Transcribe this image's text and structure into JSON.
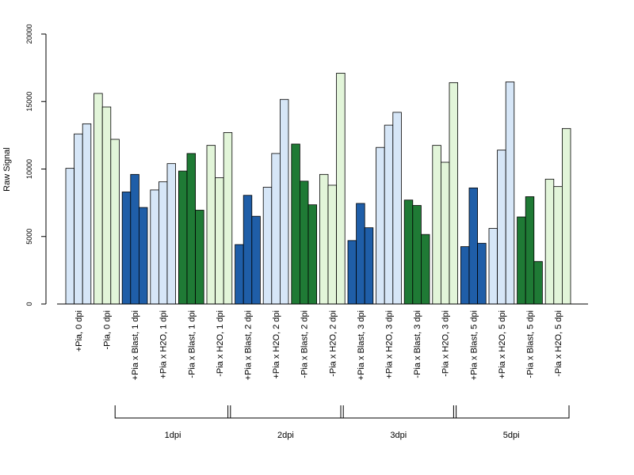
{
  "chart_data": {
    "type": "bar",
    "ylabel": "Raw Signal",
    "ylim": [
      0,
      20000
    ],
    "yticks": [
      0,
      5000,
      10000,
      15000,
      20000
    ],
    "grid": false,
    "colors": {
      "light_blue": "#d6e6f7",
      "light_green": "#e2f5d9",
      "dark_blue": "#1f5ea8",
      "dark_green": "#1f7a35"
    },
    "categories": [
      "+Pia, 0 dpi",
      "-Pia, 0 dpi",
      "+Pia x Blast, 1 dpi",
      "+Pia x H2O, 1 dpi",
      "-Pia x Blast, 1 dpi",
      "-Pia x H2O, 1 dpi",
      "+Pia x Blast, 2 dpi",
      "+Pia x H2O, 2 dpi",
      "-Pia x Blast, 2 dpi",
      "-Pia x H2O, 2 dpi",
      "+Pia x Blast, 3 dpi",
      "+Pia x H2O, 3 dpi",
      "-Pia x Blast, 3 dpi",
      "-Pia x H2O, 3 dpi",
      "+Pia x Blast, 5 dpi",
      "+Pia x H2O, 5 dpi",
      "-Pia x Blast, 5 dpi",
      "-Pia x H2O, 5 dpi"
    ],
    "group_colors": [
      "light_blue",
      "light_green",
      "dark_blue",
      "light_blue",
      "dark_green",
      "light_green",
      "dark_blue",
      "light_blue",
      "dark_green",
      "light_green",
      "dark_blue",
      "light_blue",
      "dark_green",
      "light_green",
      "dark_blue",
      "light_blue",
      "dark_green",
      "light_green"
    ],
    "values": [
      [
        10050,
        12600,
        13350
      ],
      [
        15600,
        14600,
        12200
      ],
      [
        8300,
        9600,
        7150
      ],
      [
        8450,
        9050,
        10400
      ],
      [
        9850,
        11150,
        6950
      ],
      [
        11750,
        9350,
        12700
      ],
      [
        4400,
        8050,
        6500
      ],
      [
        8650,
        11150,
        15150
      ],
      [
        11850,
        9100,
        7350
      ],
      [
        9600,
        8800,
        17100
      ],
      [
        4700,
        7450,
        5650
      ],
      [
        11600,
        13250,
        14200
      ],
      [
        7700,
        7300,
        5150
      ],
      [
        11750,
        10500,
        16400
      ],
      [
        4250,
        8600,
        4500
      ],
      [
        5600,
        11400,
        16450
      ],
      [
        6450,
        7950,
        3150
      ],
      [
        9250,
        8700,
        13000
      ]
    ],
    "brackets": [
      {
        "label": "1dpi",
        "from": 2,
        "to": 5
      },
      {
        "label": "2dpi",
        "from": 6,
        "to": 9
      },
      {
        "label": "3dpi",
        "from": 10,
        "to": 13
      },
      {
        "label": "5dpi",
        "from": 14,
        "to": 17
      }
    ]
  }
}
